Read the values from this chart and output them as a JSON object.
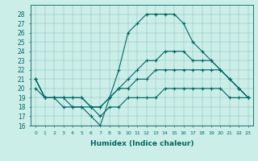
{
  "xlabel": "Humidex (Indice chaleur)",
  "bg_color": "#cceee8",
  "line_color": "#006666",
  "x_ticks": [
    0,
    1,
    2,
    3,
    4,
    5,
    6,
    7,
    8,
    9,
    10,
    11,
    12,
    13,
    14,
    15,
    16,
    17,
    18,
    19,
    20,
    21,
    22,
    23
  ],
  "ylim": [
    16,
    29
  ],
  "y_ticks": [
    16,
    17,
    18,
    19,
    20,
    21,
    22,
    23,
    24,
    25,
    26,
    27,
    28
  ],
  "series": [
    [
      21,
      19,
      19,
      19,
      18,
      18,
      17,
      16,
      19,
      22,
      26,
      27,
      28,
      28,
      28,
      28,
      27,
      25,
      24,
      23,
      22,
      21,
      20,
      19
    ],
    [
      21,
      19,
      19,
      19,
      19,
      19,
      18,
      18,
      19,
      20,
      21,
      22,
      23,
      23,
      24,
      24,
      24,
      23,
      23,
      23,
      22,
      21,
      20,
      19
    ],
    [
      21,
      19,
      19,
      19,
      19,
      19,
      18,
      18,
      19,
      20,
      20,
      21,
      21,
      22,
      22,
      22,
      22,
      22,
      22,
      22,
      22,
      21,
      20,
      19
    ],
    [
      20,
      19,
      19,
      18,
      18,
      18,
      18,
      17,
      18,
      18,
      19,
      19,
      19,
      19,
      20,
      20,
      20,
      20,
      20,
      20,
      20,
      19,
      19,
      19
    ]
  ]
}
